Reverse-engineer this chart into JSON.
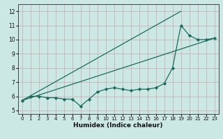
{
  "title": "",
  "xlabel": "Humidex (Indice chaleur)",
  "ylabel": "",
  "bg_color": "#cce8e4",
  "line_color": "#1a6b5e",
  "grid_color": "#c8a8a8",
  "xlim": [
    -0.5,
    23.5
  ],
  "ylim": [
    4.75,
    12.5
  ],
  "xticks": [
    0,
    1,
    2,
    3,
    4,
    5,
    6,
    7,
    8,
    9,
    10,
    11,
    12,
    13,
    14,
    15,
    16,
    17,
    18,
    19,
    20,
    21,
    22,
    23
  ],
  "yticks": [
    5,
    6,
    7,
    8,
    9,
    10,
    11,
    12
  ],
  "line1_x": [
    0,
    1,
    2,
    3,
    4,
    5,
    6,
    7,
    8,
    9,
    10,
    11,
    12,
    13,
    14,
    15,
    16,
    17,
    18,
    19,
    20,
    21,
    22,
    23
  ],
  "line1_y": [
    5.7,
    6.0,
    6.0,
    5.9,
    5.9,
    5.8,
    5.8,
    5.3,
    5.8,
    6.3,
    6.5,
    6.6,
    6.5,
    6.4,
    6.5,
    6.5,
    6.6,
    6.9,
    8.0,
    11.0,
    10.3,
    10.0,
    10.0,
    10.1
  ],
  "line2_x": [
    0,
    23
  ],
  "line2_y": [
    5.7,
    10.1
  ],
  "line3_x": [
    0,
    19
  ],
  "line3_y": [
    5.7,
    12.0
  ]
}
